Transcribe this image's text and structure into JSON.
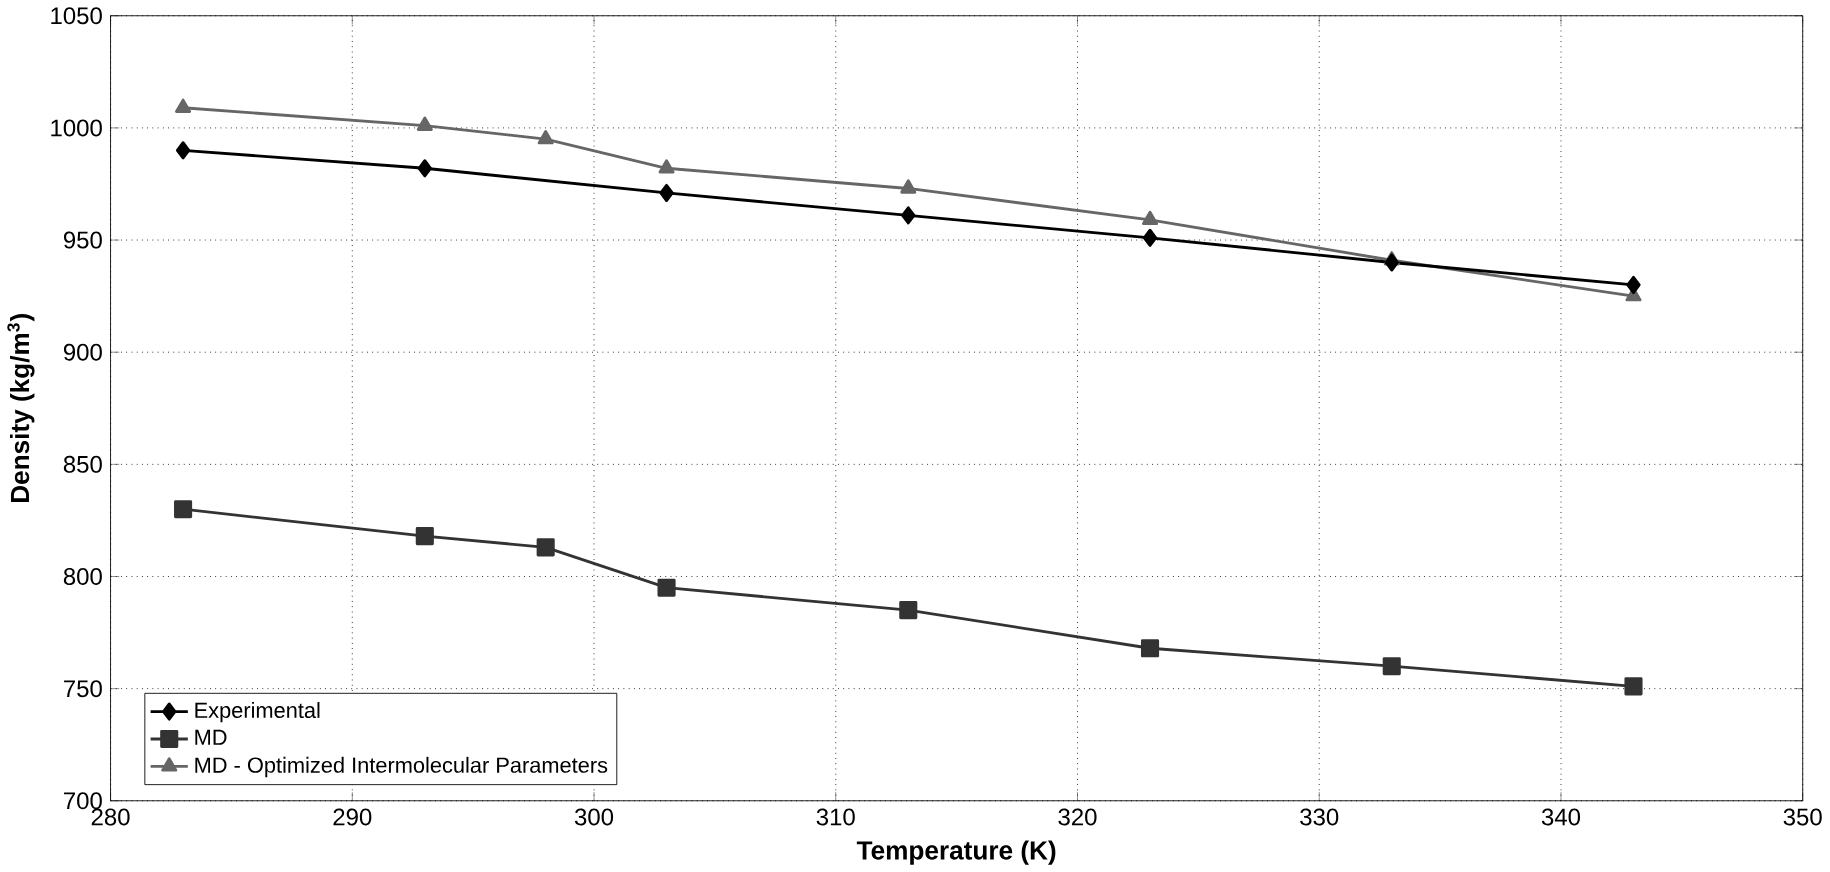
{
  "chart_data": {
    "type": "line",
    "xlabel": "Temperature (K)",
    "ylabel": "Density (kg/m$^{3}$)",
    "xlim": [
      280,
      350
    ],
    "xticks": [
      280,
      290,
      300,
      310,
      320,
      330,
      340,
      350
    ],
    "ylim": [
      700,
      1050
    ],
    "yticks": [
      700,
      750,
      800,
      850,
      900,
      950,
      1000,
      1050
    ],
    "grid": true,
    "legend": "bottom left",
    "line_style": "solid",
    "series": [
      {
        "name": "Experimental",
        "color": "#000000",
        "marker": "diamond",
        "x": [
          283,
          293,
          303,
          313,
          323,
          333,
          343
        ],
        "values": [
          990,
          982,
          971,
          961,
          951,
          940,
          930
        ]
      },
      {
        "name": "MD",
        "color": "#333333",
        "marker": "square",
        "x": [
          283,
          293,
          298,
          303,
          313,
          323,
          333,
          343
        ],
        "values": [
          830,
          818,
          813,
          795,
          785,
          768,
          760,
          751
        ]
      },
      {
        "name": "MD - Optimized Intermolecular Parameters",
        "color": "#666666",
        "marker": "triangle",
        "x": [
          283,
          293,
          298,
          303,
          313,
          323,
          333,
          343
        ],
        "values": [
          1009,
          1001,
          995,
          982,
          973,
          959,
          941,
          925
        ]
      }
    ]
  }
}
